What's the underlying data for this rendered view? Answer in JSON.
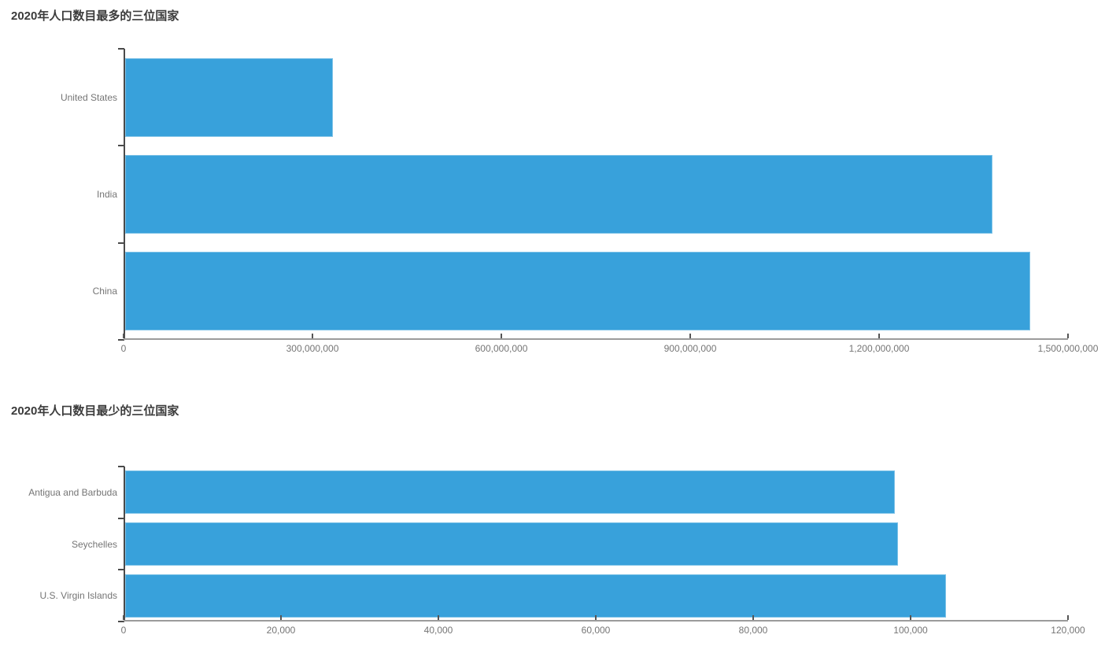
{
  "page": {
    "background": "#ffffff"
  },
  "styles": {
    "bar_color": "#38a1db",
    "y_axis_line_color": "#4a4a4a",
    "x_axis_line_color": "#9b9b9b",
    "label_color": "#757575",
    "title_color": "#3b3b3b"
  },
  "chart_data": [
    {
      "type": "bar",
      "orientation": "horizontal",
      "title": "2020年人口数目最多的三位国家",
      "categories": [
        "United States",
        "India",
        "China"
      ],
      "values": [
        331002651,
        1380004385,
        1439323776
      ],
      "xlim": [
        0,
        1500000000
      ],
      "x_ticks": [
        0,
        300000000,
        600000000,
        900000000,
        1200000000,
        1500000000
      ],
      "x_tick_labels": [
        "0",
        "300,000,000",
        "600,000,000",
        "900,000,000",
        "1,200,000,000",
        "1,500,000,000"
      ],
      "xlabel": "",
      "ylabel": "",
      "grid": false,
      "legend": false,
      "bar_color": "#38a1db"
    },
    {
      "type": "bar",
      "orientation": "horizontal",
      "title": "2020年人口数目最少的三位国家",
      "categories": [
        "Antigua and Barbuda",
        "Seychelles",
        "U.S. Virgin Islands"
      ],
      "values": [
        97929,
        98347,
        104425
      ],
      "xlim": [
        0,
        120000
      ],
      "x_ticks": [
        0,
        20000,
        40000,
        60000,
        80000,
        100000,
        120000
      ],
      "x_tick_labels": [
        "0",
        "20,000",
        "40,000",
        "60,000",
        "80,000",
        "100,000",
        "120,000"
      ],
      "xlabel": "",
      "ylabel": "",
      "grid": false,
      "legend": false,
      "bar_color": "#38a1db"
    }
  ]
}
